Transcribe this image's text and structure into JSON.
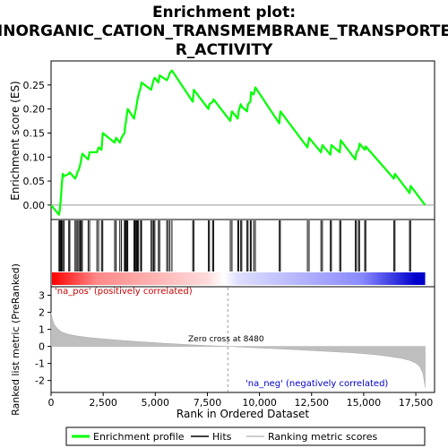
{
  "chart_data": {
    "type": "line",
    "title_line1": "Enrichment plot:",
    "title_line2": "INORGANIC_CATION_TRANSMEMBRANE_TRANSPORTE",
    "title_line3": "R_ACTIVITY",
    "top_panel": {
      "ylabel": "Enrichment score (ES)",
      "ylim": [
        -0.03,
        0.3
      ],
      "yticks": [
        "0.00",
        "0.05",
        "0.10",
        "0.15",
        "0.20",
        "0.25"
      ],
      "ytick_values": [
        0.0,
        0.05,
        0.1,
        0.15,
        0.2,
        0.25
      ],
      "series": [
        {
          "name": "Enrichment profile",
          "color": "#00ff00",
          "x": [
            0,
            380,
            420,
            460,
            480,
            510,
            560,
            620,
            850,
            900,
            1150,
            1210,
            1280,
            1340,
            1400,
            1450,
            1500,
            1780,
            1850,
            2200,
            2280,
            2420,
            2480,
            3050,
            3120,
            3300,
            3380,
            3520,
            3560,
            3600,
            3640,
            3680,
            3980,
            4020,
            4070,
            4110,
            4150,
            4200,
            4300,
            4340,
            4800,
            4860,
            4920,
            4980,
            5150,
            5210,
            5550,
            5620,
            5700,
            5800,
            6800,
            6850,
            7550,
            7600,
            7750,
            7800,
            8600,
            8680,
            8960,
            9000,
            9100,
            9150,
            9400,
            9450,
            9560,
            9600,
            9720,
            9800,
            10950,
            11000,
            12300,
            12380,
            12950,
            13020,
            13400,
            13450,
            13850,
            13900,
            14600,
            14650,
            14750,
            14800,
            15050,
            15100,
            16450,
            16500,
            17200,
            17250,
            17950
          ],
          "y": [
            0.0,
            -0.02,
            -0.01,
            0.01,
            0.02,
            0.04,
            0.065,
            0.06,
            0.065,
            0.068,
            0.055,
            0.06,
            0.07,
            0.075,
            0.085,
            0.095,
            0.107,
            0.095,
            0.11,
            0.11,
            0.12,
            0.115,
            0.15,
            0.13,
            0.14,
            0.13,
            0.14,
            0.15,
            0.165,
            0.175,
            0.19,
            0.2,
            0.18,
            0.19,
            0.2,
            0.21,
            0.22,
            0.23,
            0.245,
            0.255,
            0.24,
            0.25,
            0.26,
            0.265,
            0.255,
            0.27,
            0.26,
            0.265,
            0.275,
            0.28,
            0.215,
            0.24,
            0.2,
            0.21,
            0.215,
            0.22,
            0.175,
            0.195,
            0.18,
            0.195,
            0.21,
            0.205,
            0.195,
            0.21,
            0.215,
            0.235,
            0.23,
            0.245,
            0.17,
            0.195,
            0.12,
            0.14,
            0.11,
            0.125,
            0.105,
            0.125,
            0.11,
            0.135,
            0.095,
            0.11,
            0.115,
            0.128,
            0.115,
            0.122,
            0.055,
            0.065,
            0.025,
            0.04,
            0.0
          ]
        }
      ]
    },
    "hits": {
      "name": "Hits",
      "x": [
        380,
        420,
        460,
        480,
        510,
        560,
        620,
        850,
        900,
        1150,
        1210,
        1280,
        1340,
        1400,
        1450,
        1500,
        1780,
        1850,
        2200,
        2280,
        2420,
        2480,
        3050,
        3120,
        3300,
        3380,
        3520,
        3560,
        3600,
        3640,
        3680,
        3980,
        4020,
        4070,
        4110,
        4150,
        4200,
        4300,
        4340,
        4800,
        4860,
        4920,
        4980,
        5150,
        5210,
        5550,
        5620,
        5700,
        5800,
        6800,
        6850,
        7550,
        7600,
        7750,
        7800,
        8600,
        8680,
        8960,
        9000,
        9100,
        9150,
        9400,
        9450,
        9560,
        9600,
        9720,
        9800,
        10950,
        11000,
        12300,
        12380,
        12950,
        13020,
        13400,
        13450,
        13850,
        13900,
        14600,
        14650,
        14750,
        14800,
        15050,
        15100,
        16450,
        16500,
        17200,
        17250
      ]
    },
    "bottom_panel": {
      "ylabel": "Ranked list metric (PreRanked)",
      "xlabel": "Rank in Ordered Dataset",
      "ylim": [
        -2.7,
        3.5
      ],
      "yticks": [
        "-2",
        "-1",
        "0",
        "1",
        "2",
        "3"
      ],
      "ytick_values": [
        -2,
        -1,
        0,
        1,
        2,
        3
      ],
      "xticks": [
        "0",
        "2,500",
        "5,000",
        "7,500",
        "10,000",
        "12,500",
        "15,000",
        "17,500"
      ],
      "xtick_values": [
        0,
        2500,
        5000,
        7500,
        10000,
        12500,
        15000,
        17500
      ],
      "xlim": [
        0,
        18400
      ],
      "label_pos": "'na_pos' (positively correlated)",
      "label_neg": "'na_neg' (negatively correlated)",
      "zero_cross_label": "Zero cross at 8480",
      "zero_cross": 8480,
      "metric_series": {
        "name": "Ranking metric scores",
        "x": [
          0,
          60,
          150,
          300,
          500,
          800,
          1200,
          1800,
          2500,
          3500,
          4500,
          5500,
          6500,
          7500,
          8480,
          9500,
          10500,
          11500,
          12500,
          13500,
          14500,
          15500,
          16200,
          16800,
          17200,
          17500,
          17700,
          17850,
          17950
        ],
        "y": [
          2.0,
          1.6,
          1.3,
          1.05,
          0.85,
          0.72,
          0.62,
          0.52,
          0.44,
          0.34,
          0.26,
          0.18,
          0.11,
          0.05,
          0.0,
          -0.06,
          -0.12,
          -0.18,
          -0.24,
          -0.31,
          -0.38,
          -0.48,
          -0.58,
          -0.7,
          -0.82,
          -0.98,
          -1.2,
          -1.6,
          -2.4
        ]
      }
    },
    "legend": [
      {
        "label": "Enrichment profile",
        "color": "#00ff00"
      },
      {
        "label": "Hits",
        "color": "#000000"
      },
      {
        "label": "Ranking metric scores",
        "color": "#bebebe"
      }
    ],
    "colors": {
      "profile": "#00ff00",
      "pos_label": "#cc0000",
      "neg_label": "#0000cc",
      "metric_fill": "#bebebe"
    }
  }
}
